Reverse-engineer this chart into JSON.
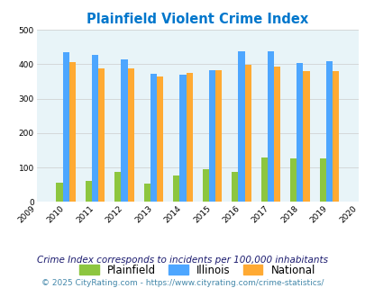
{
  "title": "Plainfield Violent Crime Index",
  "years": [
    2010,
    2011,
    2012,
    2013,
    2014,
    2015,
    2016,
    2017,
    2018,
    2019
  ],
  "plainfield": [
    57,
    60,
    88,
    53,
    76,
    94,
    88,
    130,
    127,
    127
  ],
  "illinois": [
    435,
    428,
    415,
    372,
    369,
    383,
    438,
    438,
    404,
    408
  ],
  "national": [
    405,
    387,
    387,
    365,
    375,
    383,
    397,
    394,
    379,
    379
  ],
  "colors": {
    "plainfield": "#8dc63f",
    "illinois": "#4da6ff",
    "national": "#ffaa33",
    "background_plot": "#e8f4f8",
    "background_fig": "#ffffff",
    "title": "#0077cc",
    "grid": "#cccccc"
  },
  "xlim": [
    2009,
    2020
  ],
  "ylim": [
    0,
    500
  ],
  "yticks": [
    0,
    100,
    200,
    300,
    400,
    500
  ],
  "bar_width": 0.22,
  "legend_labels": [
    "Plainfield",
    "Illinois",
    "National"
  ],
  "footnote1": "Crime Index corresponds to incidents per 100,000 inhabitants",
  "footnote2": "© 2025 CityRating.com - https://www.cityrating.com/crime-statistics/",
  "footnote1_color": "#1a1a6e",
  "footnote2_color": "#4488aa"
}
